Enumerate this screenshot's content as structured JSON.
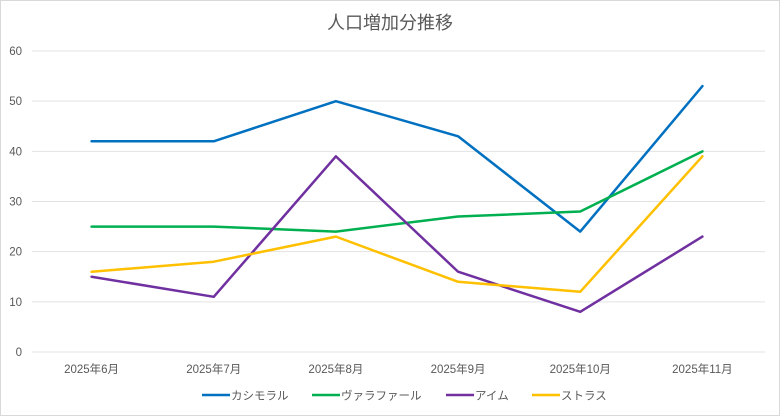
{
  "chart_data": {
    "type": "line",
    "title": "人口増加分推移",
    "xlabel": "",
    "ylabel": "",
    "categories": [
      "2025年6月",
      "2025年7月",
      "2025年8月",
      "2025年9月",
      "2025年10月",
      "2025年11月"
    ],
    "ylim": [
      0,
      60
    ],
    "yticks": [
      0,
      10,
      20,
      30,
      40,
      50,
      60
    ],
    "grid": true,
    "legend_position": "bottom",
    "series": [
      {
        "name": "カシモラル",
        "color": "#0070C0",
        "values": [
          42,
          42,
          50,
          43,
          24,
          53
        ]
      },
      {
        "name": "ヴァラファール",
        "color": "#00B050",
        "values": [
          25,
          25,
          24,
          27,
          28,
          40
        ]
      },
      {
        "name": "アイム",
        "color": "#7030A0",
        "values": [
          15,
          11,
          39,
          16,
          8,
          23
        ]
      },
      {
        "name": "ストラス",
        "color": "#FFC000",
        "values": [
          16,
          18,
          23,
          14,
          12,
          39
        ]
      }
    ]
  }
}
